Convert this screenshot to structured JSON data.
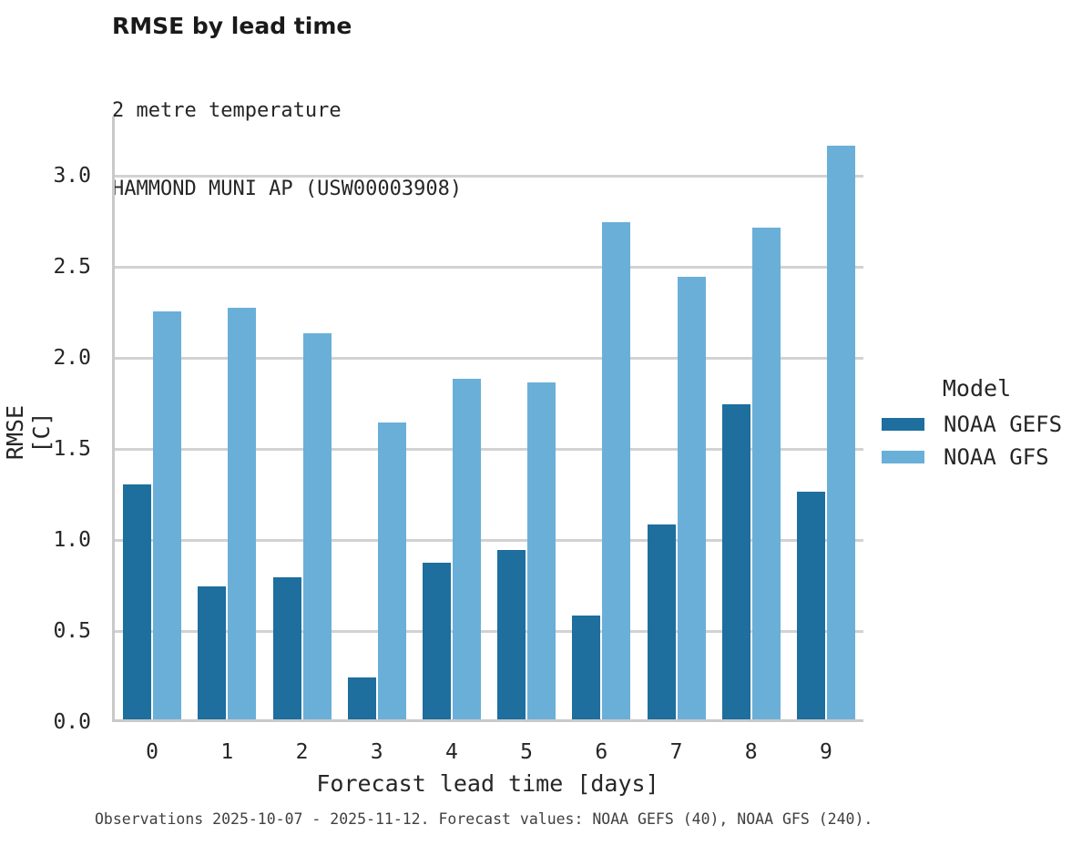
{
  "chart_data": {
    "type": "bar",
    "title": "RMSE by lead time",
    "subtitles": [
      "2 metre temperature",
      "HAMMOND MUNI AP (USW00003908)"
    ],
    "categories": [
      "0",
      "1",
      "2",
      "3",
      "4",
      "5",
      "6",
      "7",
      "8",
      "9"
    ],
    "series": [
      {
        "name": "NOAA GEFS",
        "color": "#1e6e9e",
        "values": [
          1.29,
          0.73,
          0.78,
          0.23,
          0.86,
          0.93,
          0.57,
          1.07,
          1.73,
          1.25
        ]
      },
      {
        "name": "NOAA GFS",
        "color": "#6aafd8",
        "values": [
          2.24,
          2.26,
          2.12,
          1.63,
          1.87,
          1.85,
          2.73,
          2.43,
          2.7,
          3.15
        ]
      }
    ],
    "xlabel": "Forecast lead time [days]",
    "ylabel": "RMSE [C]",
    "ylim": [
      0,
      3.31
    ],
    "yticks": [
      0.0,
      0.5,
      1.0,
      1.5,
      2.0,
      2.5,
      3.0
    ],
    "grid": "horizontal",
    "legend": {
      "title": "Model",
      "position": "right"
    },
    "caption": "Observations 2025-10-07 - 2025-11-12. Forecast values: NOAA GEFS (40), NOAA GFS (240)."
  }
}
